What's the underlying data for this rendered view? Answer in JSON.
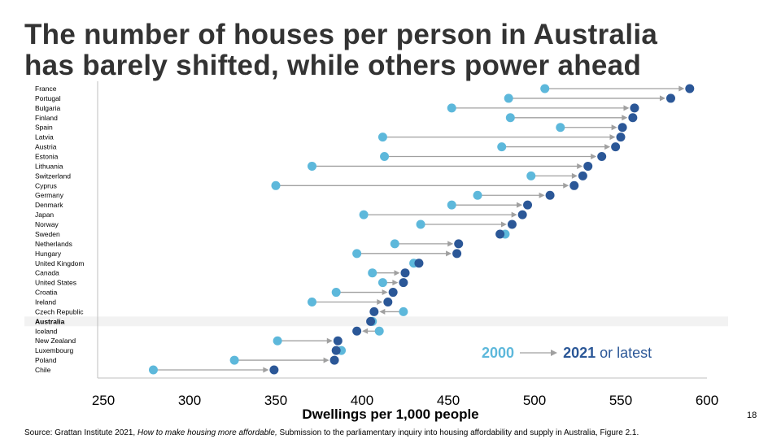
{
  "title_line1": "The number of houses per person in Australia",
  "title_line2": "has barely shifted, while others power ahead",
  "page_number": "18",
  "source": {
    "prefix": "Source: Grattan Institute 2021, ",
    "italic": "How to make housing more affordable,",
    "suffix": " Submission to the parliamentary inquiry into housing affordability and supply in Australia, Figure 2.1."
  },
  "legend": {
    "start": "2000",
    "end_bold": "2021",
    "end_rest": " or latest"
  },
  "chart_data": {
    "type": "dumbbell",
    "xlabel": "Dwellings per 1,000 people",
    "xlim": [
      250,
      600
    ],
    "xticks": [
      250,
      300,
      350,
      400,
      450,
      500,
      550,
      600
    ],
    "highlight": "Australia",
    "colors": {
      "2000": "#5db8db",
      "2021": "#2b5797",
      "arrow": "#a0a0a0",
      "highlight_band": "#f2f2f2"
    },
    "categories": [
      "France",
      "Portugal",
      "Bulgaria",
      "Finland",
      "Spain",
      "Latvia",
      "Austria",
      "Estonia",
      "Lithuania",
      "Switzerland",
      "Cyprus",
      "Germany",
      "Denmark",
      "Japan",
      "Norway",
      "Sweden",
      "Netherlands",
      "Hungary",
      "United Kingdom",
      "Canada",
      "United States",
      "Croatia",
      "Ireland",
      "Czech Republic",
      "Australia",
      "Iceland",
      "New Zealand",
      "Luxembourg",
      "Poland",
      "Chile"
    ],
    "series": [
      {
        "name": "2000",
        "values": [
          506,
          485,
          452,
          486,
          515,
          412,
          481,
          413,
          371,
          498,
          350,
          467,
          452,
          401,
          434,
          483,
          419,
          397,
          430,
          406,
          412,
          385,
          371,
          424,
          406,
          410,
          351,
          388,
          326,
          279
        ]
      },
      {
        "name": "2021 or latest",
        "values": [
          590,
          579,
          558,
          557,
          551,
          550,
          547,
          539,
          531,
          528,
          523,
          509,
          496,
          493,
          487,
          480,
          456,
          455,
          433,
          425,
          424,
          418,
          415,
          407,
          405,
          397,
          386,
          385,
          384,
          349
        ]
      }
    ]
  }
}
